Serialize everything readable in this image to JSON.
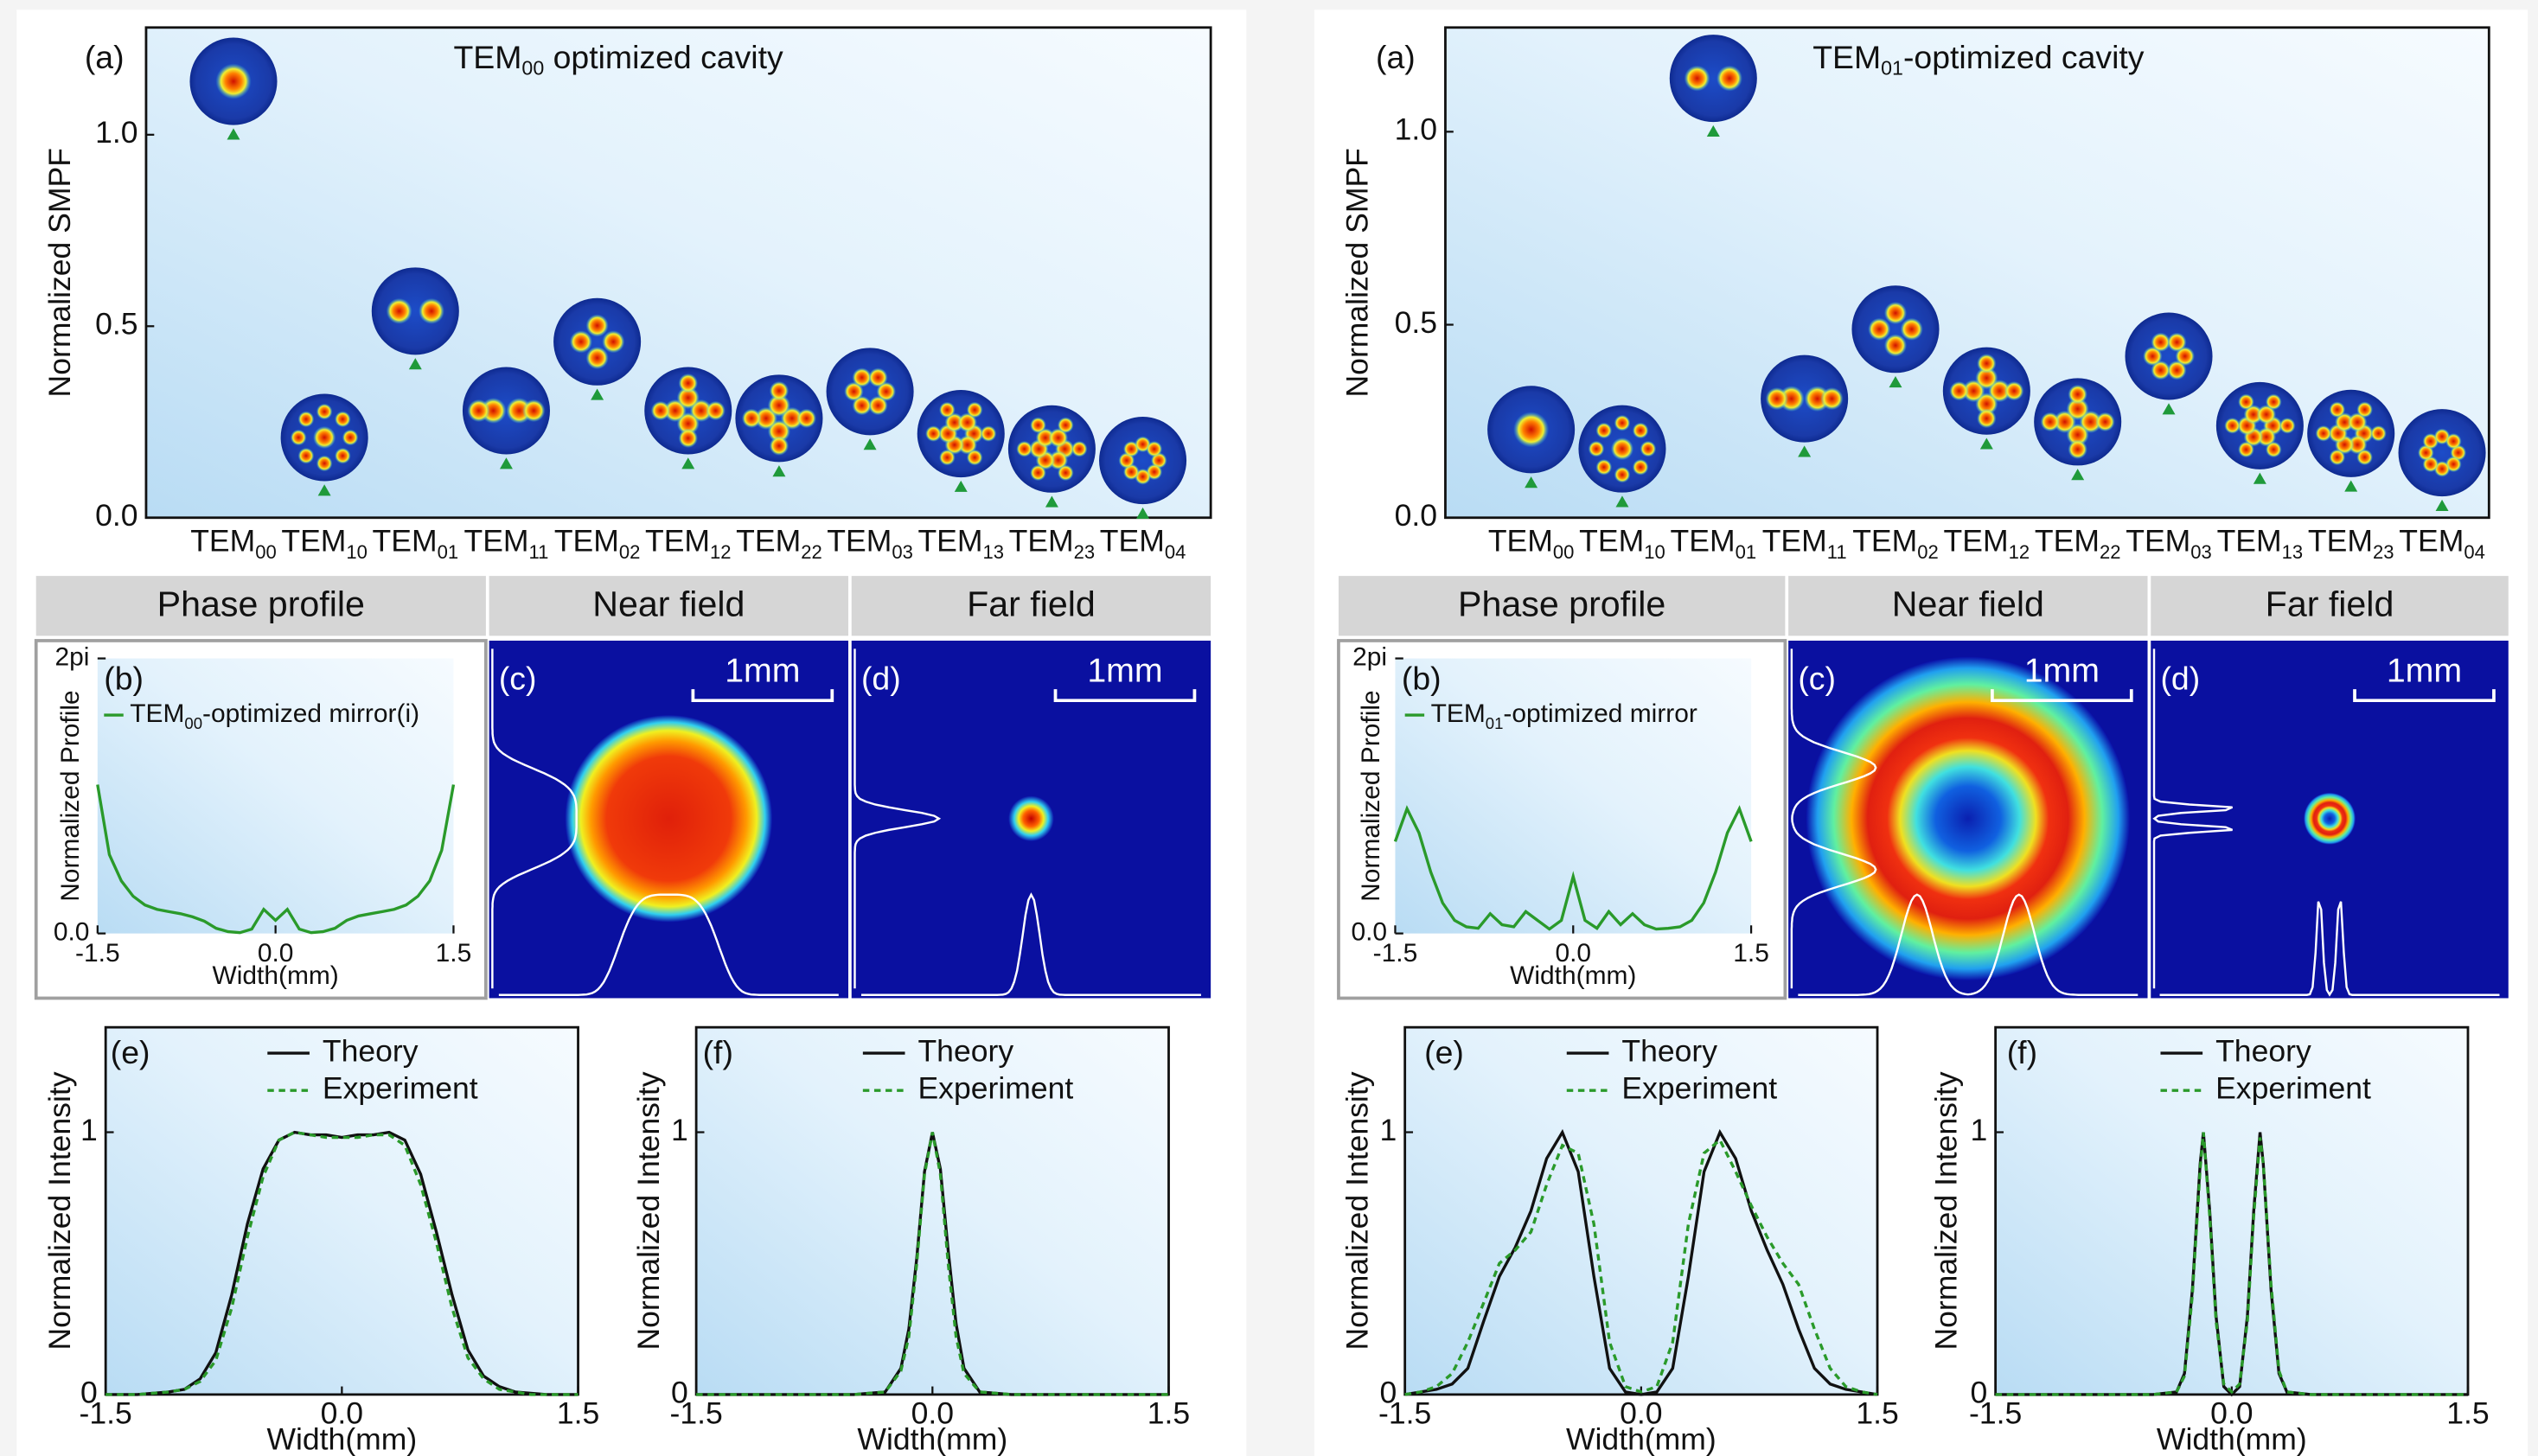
{
  "chart_data": [
    {
      "type": "scatter",
      "panel_label": "(a)",
      "title": "TEM00 optimized cavity",
      "y_label": "Normalized SMPF",
      "categories": [
        "TEM00",
        "TEM10",
        "TEM01",
        "TEM11",
        "TEM02",
        "TEM12",
        "TEM22",
        "TEM03",
        "TEM13",
        "TEM23",
        "TEM04"
      ],
      "values": [
        1.0,
        0.07,
        0.4,
        0.14,
        0.32,
        0.14,
        0.12,
        0.19,
        0.08,
        0.04,
        0.01
      ],
      "color": "#1f9a3a",
      "ylim": [
        0,
        1.28
      ],
      "yticks": [
        {
          "value": 0,
          "label": "0.0"
        },
        {
          "value": 0.5,
          "label": "0.5"
        },
        {
          "value": 1,
          "label": "1.0"
        }
      ]
    },
    {
      "type": "line",
      "panel_label": "(b)",
      "y_label": "Normalized Profile",
      "x_label": "Width(mm)",
      "x": [
        -1.5,
        -1.4,
        -1.3,
        -1.2,
        -1.1,
        -1.0,
        -0.9,
        -0.8,
        -0.7,
        -0.6,
        -0.5,
        -0.4,
        -0.3,
        -0.2,
        -0.1,
        0,
        0.1,
        0.2,
        0.3,
        0.4,
        0.5,
        0.6,
        0.7,
        0.8,
        0.9,
        1.0,
        1.1,
        1.2,
        1.3,
        1.4,
        1.5
      ],
      "series": [
        {
          "name": "TEM00-optimized mirror(i)",
          "color": "#2a9a2a",
          "values": [
            3.4,
            1.8,
            1.2,
            0.85,
            0.65,
            0.55,
            0.5,
            0.45,
            0.38,
            0.28,
            0.12,
            0.04,
            0.02,
            0.1,
            0.55,
            0.3,
            0.55,
            0.1,
            0.02,
            0.04,
            0.12,
            0.3,
            0.4,
            0.45,
            0.5,
            0.55,
            0.65,
            0.85,
            1.2,
            1.9,
            3.4
          ]
        }
      ],
      "xlim": [
        -1.5,
        1.5
      ],
      "xticks": [
        -1.5,
        {
          "value": 0,
          "label": "0.0"
        },
        1.5
      ],
      "ylim": [
        0,
        6.283
      ],
      "yticks": [
        {
          "value": 0,
          "label": "0.0"
        },
        {
          "value": 6.283,
          "label": "2pi"
        }
      ]
    },
    {
      "type": "line",
      "panel_label": "(e)",
      "y_label": "Normalized Intensity",
      "x_label": "Width(mm)",
      "x": [
        -1.5,
        -1.4,
        -1.3,
        -1.2,
        -1.1,
        -1.0,
        -0.9,
        -0.8,
        -0.7,
        -0.6,
        -0.5,
        -0.4,
        -0.3,
        -0.2,
        -0.1,
        0,
        0.1,
        0.2,
        0.3,
        0.4,
        0.5,
        0.6,
        0.7,
        0.8,
        0.9,
        1.0,
        1.1,
        1.2,
        1.3,
        1.4,
        1.5
      ],
      "series": [
        {
          "name": "Theory",
          "color": "#111111",
          "dash": false,
          "values": [
            0,
            0,
            0,
            0.005,
            0.01,
            0.02,
            0.06,
            0.16,
            0.38,
            0.65,
            0.86,
            0.97,
            1.0,
            0.99,
            0.99,
            0.98,
            0.99,
            0.99,
            1.0,
            0.97,
            0.84,
            0.62,
            0.38,
            0.17,
            0.07,
            0.03,
            0.01,
            0.005,
            0,
            0,
            0
          ]
        },
        {
          "name": "Experiment",
          "color": "#2a9a2a",
          "dash": true,
          "values": [
            0,
            0,
            0,
            0.005,
            0.01,
            0.02,
            0.05,
            0.13,
            0.33,
            0.6,
            0.83,
            0.97,
            1.0,
            0.99,
            0.98,
            0.98,
            0.98,
            0.99,
            0.99,
            0.95,
            0.8,
            0.58,
            0.33,
            0.14,
            0.06,
            0.02,
            0.01,
            0,
            0,
            0,
            0
          ]
        }
      ],
      "xlim": [
        -1.5,
        1.5
      ],
      "xticks": [
        -1.5,
        {
          "value": 0,
          "label": "0.0"
        },
        1.5
      ],
      "ylim": [
        0,
        1.4
      ],
      "yticks": [
        0,
        1
      ]
    },
    {
      "type": "line",
      "panel_label": "(f)",
      "y_label": "Normalized Intensity",
      "x_label": "Width(mm)",
      "x": [
        -1.5,
        -1.0,
        -0.5,
        -0.3,
        -0.2,
        -0.15,
        -0.1,
        -0.05,
        0,
        0.05,
        0.1,
        0.15,
        0.2,
        0.3,
        0.5,
        1.0,
        1.5
      ],
      "series": [
        {
          "name": "Theory",
          "color": "#111111",
          "dash": false,
          "values": [
            0,
            0,
            0,
            0.01,
            0.1,
            0.25,
            0.52,
            0.85,
            1.0,
            0.86,
            0.55,
            0.27,
            0.1,
            0.01,
            0,
            0,
            0
          ]
        },
        {
          "name": "Experiment",
          "color": "#2a9a2a",
          "dash": true,
          "values": [
            0,
            0,
            0,
            0.01,
            0.09,
            0.22,
            0.5,
            0.84,
            1.0,
            0.84,
            0.5,
            0.22,
            0.08,
            0.01,
            0,
            0,
            0
          ]
        }
      ],
      "xlim": [
        -1.5,
        1.5
      ],
      "xticks": [
        -1.5,
        {
          "value": 0,
          "label": "0.0"
        },
        1.5
      ],
      "ylim": [
        0,
        1.4
      ],
      "yticks": [
        0,
        1
      ]
    },
    {
      "type": "scatter",
      "panel_label": "(a)",
      "title": "TEM01-optimized cavity",
      "y_label": "Normalized SMPF",
      "categories": [
        "TEM00",
        "TEM10",
        "TEM01",
        "TEM11",
        "TEM02",
        "TEM12",
        "TEM22",
        "TEM03",
        "TEM13",
        "TEM23",
        "TEM04"
      ],
      "values": [
        0.09,
        0.04,
        1.0,
        0.17,
        0.35,
        0.19,
        0.11,
        0.28,
        0.1,
        0.08,
        0.03
      ],
      "color": "#1f9a3a",
      "ylim": [
        0,
        1.27
      ],
      "yticks": [
        {
          "value": 0,
          "label": "0.0"
        },
        {
          "value": 0.5,
          "label": "0.5"
        },
        {
          "value": 1,
          "label": "1.0"
        }
      ]
    },
    {
      "type": "line",
      "panel_label": "(b)",
      "y_label": "Normalized Profile",
      "x_label": "Width(mm)",
      "x": [
        -1.5,
        -1.4,
        -1.3,
        -1.2,
        -1.1,
        -1.0,
        -0.9,
        -0.8,
        -0.7,
        -0.6,
        -0.5,
        -0.4,
        -0.3,
        -0.2,
        -0.1,
        0,
        0.1,
        0.2,
        0.3,
        0.4,
        0.5,
        0.6,
        0.7,
        0.8,
        0.9,
        1.0,
        1.1,
        1.2,
        1.3,
        1.4,
        1.5
      ],
      "series": [
        {
          "name": "TEM01-optimized mirror",
          "color": "#2a9a2a",
          "values": [
            2.1,
            2.85,
            2.3,
            1.4,
            0.7,
            0.3,
            0.15,
            0.12,
            0.45,
            0.2,
            0.15,
            0.5,
            0.3,
            0.1,
            0.3,
            1.3,
            0.3,
            0.12,
            0.5,
            0.2,
            0.45,
            0.2,
            0.1,
            0.12,
            0.15,
            0.3,
            0.7,
            1.4,
            2.3,
            2.85,
            2.1
          ]
        }
      ],
      "xlim": [
        -1.5,
        1.5
      ],
      "xticks": [
        -1.5,
        {
          "value": 0,
          "label": "0.0"
        },
        1.5
      ],
      "ylim": [
        0,
        6.283
      ],
      "yticks": [
        {
          "value": 0,
          "label": "0.0"
        },
        {
          "value": 6.283,
          "label": "2pi"
        }
      ]
    },
    {
      "type": "line",
      "panel_label": "(e)",
      "y_label": "Normalized Intensity",
      "x_label": "Width(mm)",
      "x": [
        -1.5,
        -1.4,
        -1.3,
        -1.2,
        -1.1,
        -1.0,
        -0.9,
        -0.8,
        -0.7,
        -0.6,
        -0.5,
        -0.4,
        -0.3,
        -0.2,
        -0.1,
        0,
        0.1,
        0.2,
        0.3,
        0.4,
        0.5,
        0.6,
        0.7,
        0.8,
        0.9,
        1.0,
        1.1,
        1.2,
        1.3,
        1.4,
        1.5
      ],
      "series": [
        {
          "name": "Theory",
          "color": "#111111",
          "dash": false,
          "values": [
            0,
            0.01,
            0.02,
            0.04,
            0.1,
            0.28,
            0.45,
            0.56,
            0.7,
            0.9,
            1.0,
            0.85,
            0.45,
            0.1,
            0.01,
            0,
            0.01,
            0.1,
            0.45,
            0.85,
            1.0,
            0.9,
            0.7,
            0.55,
            0.42,
            0.25,
            0.1,
            0.04,
            0.02,
            0.01,
            0
          ]
        },
        {
          "name": "Experiment",
          "color": "#2a9a2a",
          "dash": true,
          "values": [
            0,
            0.01,
            0.03,
            0.08,
            0.2,
            0.35,
            0.5,
            0.55,
            0.62,
            0.8,
            0.95,
            0.92,
            0.65,
            0.2,
            0.03,
            0.01,
            0.03,
            0.2,
            0.65,
            0.92,
            0.97,
            0.85,
            0.72,
            0.6,
            0.5,
            0.42,
            0.25,
            0.1,
            0.03,
            0.01,
            0
          ]
        }
      ],
      "xlim": [
        -1.5,
        1.5
      ],
      "xticks": [
        -1.5,
        {
          "value": 0,
          "label": "0.0"
        },
        1.5
      ],
      "ylim": [
        0,
        1.4
      ],
      "yticks": [
        0,
        1
      ]
    },
    {
      "type": "line",
      "panel_label": "(f)",
      "y_label": "Normalized Intensity",
      "x_label": "Width(mm)",
      "x": [
        -1.5,
        -1.0,
        -0.5,
        -0.35,
        -0.3,
        -0.25,
        -0.2,
        -0.18,
        -0.14,
        -0.1,
        -0.05,
        0,
        0.05,
        0.1,
        0.14,
        0.18,
        0.2,
        0.25,
        0.3,
        0.35,
        0.5,
        1.0,
        1.5
      ],
      "series": [
        {
          "name": "Theory",
          "color": "#111111",
          "dash": false,
          "values": [
            0,
            0,
            0,
            0.01,
            0.08,
            0.4,
            0.88,
            1.0,
            0.7,
            0.3,
            0.03,
            0,
            0.03,
            0.3,
            0.7,
            1.0,
            0.88,
            0.4,
            0.08,
            0.01,
            0,
            0,
            0
          ]
        },
        {
          "name": "Experiment",
          "color": "#2a9a2a",
          "dash": true,
          "values": [
            0,
            0,
            0,
            0.01,
            0.07,
            0.38,
            0.86,
            1.0,
            0.68,
            0.28,
            0.04,
            0.01,
            0.04,
            0.28,
            0.68,
            0.98,
            0.88,
            0.42,
            0.09,
            0.01,
            0,
            0,
            0
          ]
        }
      ],
      "xlim": [
        -1.5,
        1.5
      ],
      "xticks": [
        -1.5,
        {
          "value": 0,
          "label": "0.0"
        },
        1.5
      ],
      "ylim": [
        0,
        1.4
      ],
      "yticks": [
        0,
        1
      ]
    }
  ],
  "headers": [
    [
      "Phase profile",
      "Near field",
      "Far field"
    ],
    [
      "Phase profile",
      "Near field",
      "Far field"
    ]
  ],
  "image_panels": [
    {
      "label": "(c)",
      "scale_bar": "1mm"
    },
    {
      "label": "(d)",
      "scale_bar": "1mm"
    },
    {
      "label": "(c)",
      "scale_bar": "1mm"
    },
    {
      "label": "(d)",
      "scale_bar": "1mm"
    }
  ]
}
